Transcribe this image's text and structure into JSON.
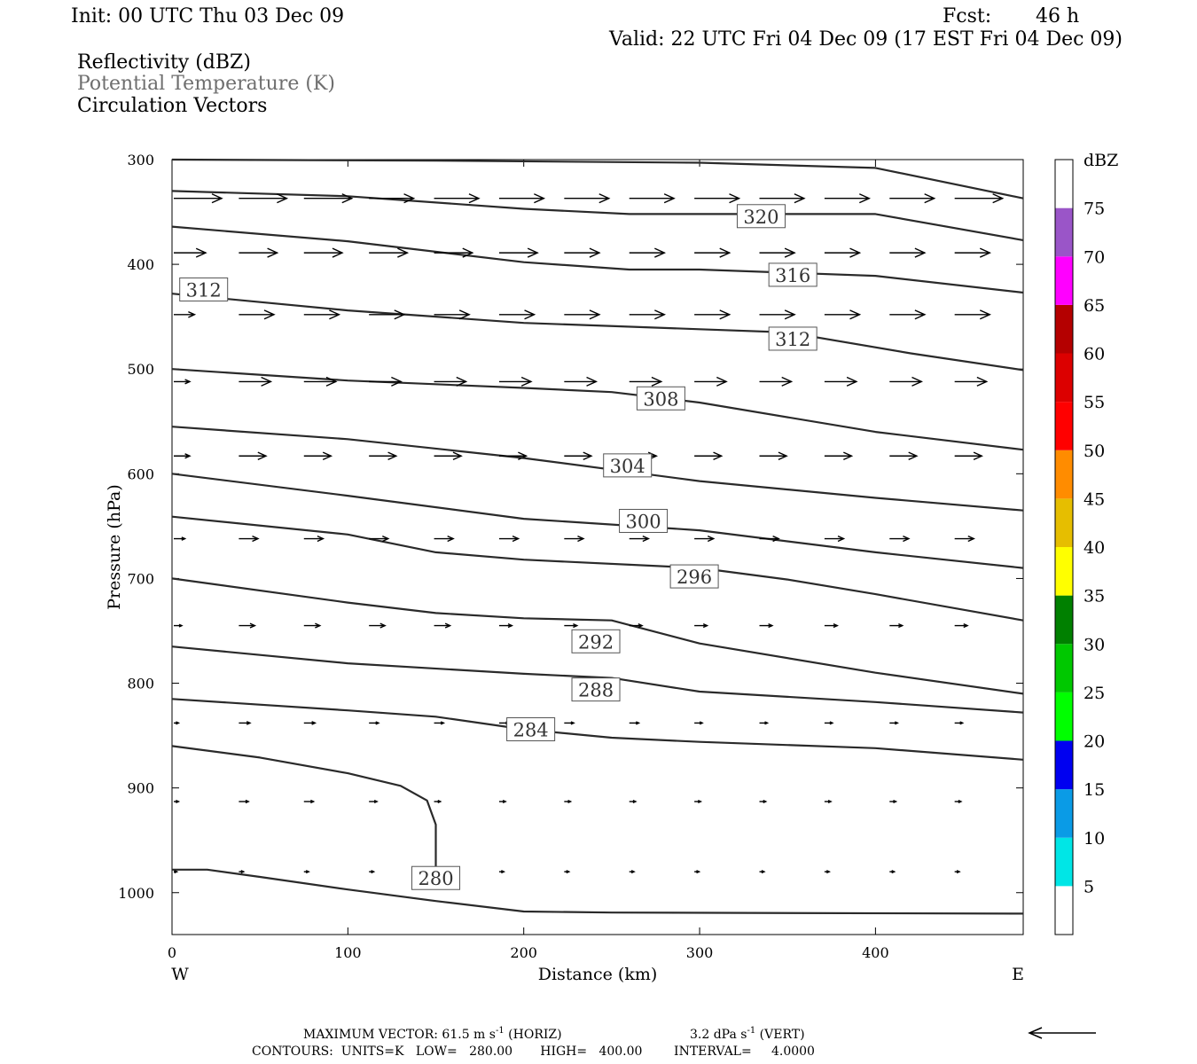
{
  "header": {
    "init": "Init: 00 UTC Thu 03 Dec 09",
    "fcst_label": "Fcst:",
    "fcst_hours": "46 h",
    "valid": "Valid: 22 UTC Fri 04 Dec 09 (17 EST Fri 04 Dec 09)",
    "fields": [
      "Reflectivity (dBZ)",
      "Potential Temperature (K)",
      "Circulation Vectors"
    ]
  },
  "footer": {
    "max_vector_prefix": "MAXIMUM VECTOR:  61.5 m s",
    "horiz_suffix": " (HORIZ)",
    "vert_prefix": "3.2 dPa s",
    "vert_suffix": " (VERT)",
    "sup": "-1",
    "contours": "CONTOURS:  UNITS=K   LOW=   280.00       HIGH=   400.00        INTERVAL=     4.0000"
  },
  "colorbar": {
    "title": "dBZ",
    "labels": [
      "5",
      "10",
      "15",
      "20",
      "25",
      "30",
      "35",
      "40",
      "45",
      "50",
      "55",
      "60",
      "65",
      "70",
      "75"
    ],
    "colors": [
      "#ffffff",
      "#00e6e6",
      "#0a9be6",
      "#0000f0",
      "#00ff00",
      "#00c800",
      "#008000",
      "#ffff00",
      "#e6be00",
      "#ff8c00",
      "#ff0000",
      "#dc0000",
      "#b40000",
      "#ff00ff",
      "#9a55c8",
      "#ffffff"
    ]
  },
  "chart_data": {
    "type": "line",
    "title": "Potential Temperature (K)",
    "xlabel": "Distance (km)",
    "ylabel": "Pressure (hPa)",
    "x_ticks": [
      "0",
      "100",
      "200",
      "300",
      "400"
    ],
    "y_ticks": [
      "300",
      "400",
      "500",
      "600",
      "700",
      "800",
      "900",
      "1000"
    ],
    "xlim": [
      0,
      484
    ],
    "ylim": [
      300,
      1040
    ],
    "x_end_labels": {
      "left": "W",
      "right": "E"
    },
    "contour_labels": [
      {
        "text": "280",
        "x": 150,
        "y": 986
      },
      {
        "text": "284",
        "x": 204,
        "y": 844
      },
      {
        "text": "288",
        "x": 241,
        "y": 806
      },
      {
        "text": "292",
        "x": 241,
        "y": 760
      },
      {
        "text": "296",
        "x": 297,
        "y": 698
      },
      {
        "text": "300",
        "x": 268,
        "y": 645
      },
      {
        "text": "304",
        "x": 259,
        "y": 592
      },
      {
        "text": "308",
        "x": 278,
        "y": 528
      },
      {
        "text": "312",
        "x": 18,
        "y": 424
      },
      {
        "text": "312",
        "x": 353,
        "y": 471
      },
      {
        "text": "316",
        "x": 353,
        "y": 410
      },
      {
        "text": "320",
        "x": 335,
        "y": 354
      }
    ],
    "series": [
      {
        "values": [
          [
            0,
            300
          ],
          [
            150,
            301
          ],
          [
            300,
            303
          ],
          [
            400,
            308
          ],
          [
            484,
            337
          ]
        ]
      },
      {
        "values": [
          [
            0,
            330
          ],
          [
            100,
            335
          ],
          [
            200,
            347
          ],
          [
            260,
            352
          ],
          [
            300,
            352
          ],
          [
            400,
            352
          ],
          [
            484,
            377
          ]
        ]
      },
      {
        "values": [
          [
            0,
            364
          ],
          [
            100,
            378
          ],
          [
            200,
            398
          ],
          [
            260,
            405
          ],
          [
            300,
            405
          ],
          [
            400,
            411
          ],
          [
            484,
            427
          ]
        ]
      },
      {
        "values": [
          [
            0,
            428
          ],
          [
            100,
            444
          ],
          [
            200,
            456
          ],
          [
            300,
            462
          ],
          [
            350,
            465
          ],
          [
            420,
            485
          ],
          [
            484,
            501
          ]
        ]
      },
      {
        "values": [
          [
            0,
            500
          ],
          [
            100,
            511
          ],
          [
            200,
            518
          ],
          [
            250,
            522
          ],
          [
            300,
            532
          ],
          [
            400,
            560
          ],
          [
            484,
            577
          ]
        ]
      },
      {
        "values": [
          [
            0,
            555
          ],
          [
            100,
            567
          ],
          [
            200,
            585
          ],
          [
            300,
            607
          ],
          [
            400,
            623
          ],
          [
            484,
            635
          ]
        ]
      },
      {
        "values": [
          [
            0,
            600
          ],
          [
            100,
            621
          ],
          [
            200,
            643
          ],
          [
            300,
            654
          ],
          [
            400,
            675
          ],
          [
            484,
            690
          ]
        ]
      },
      {
        "values": [
          [
            0,
            641
          ],
          [
            100,
            658
          ],
          [
            150,
            675
          ],
          [
            200,
            682
          ],
          [
            300,
            690
          ],
          [
            350,
            701
          ],
          [
            400,
            715
          ],
          [
            484,
            740
          ]
        ]
      },
      {
        "values": [
          [
            0,
            700
          ],
          [
            100,
            723
          ],
          [
            150,
            733
          ],
          [
            200,
            738
          ],
          [
            250,
            740
          ],
          [
            300,
            762
          ],
          [
            400,
            790
          ],
          [
            484,
            810
          ]
        ]
      },
      {
        "values": [
          [
            0,
            765
          ],
          [
            100,
            781
          ],
          [
            200,
            791
          ],
          [
            250,
            795
          ],
          [
            300,
            808
          ],
          [
            400,
            818
          ],
          [
            484,
            828
          ]
        ]
      },
      {
        "values": [
          [
            0,
            815
          ],
          [
            100,
            826
          ],
          [
            150,
            832
          ],
          [
            200,
            844
          ],
          [
            250,
            852
          ],
          [
            300,
            856
          ],
          [
            400,
            862
          ],
          [
            484,
            873
          ]
        ]
      },
      {
        "values": [
          [
            0,
            860
          ],
          [
            50,
            871
          ],
          [
            100,
            886
          ],
          [
            130,
            898
          ],
          [
            145,
            912
          ],
          [
            150,
            935
          ],
          [
            150,
            986
          ],
          [
            152,
            990
          ]
        ]
      },
      {
        "values": [
          [
            0,
            978
          ],
          [
            20,
            978
          ],
          [
            50,
            985
          ],
          [
            100,
            997
          ],
          [
            150,
            1008
          ],
          [
            200,
            1018
          ],
          [
            250,
            1019
          ],
          [
            484,
            1020
          ]
        ]
      }
    ],
    "vectors": {
      "x": [
        0,
        37,
        74,
        111,
        148,
        185,
        222,
        259,
        296,
        333,
        370,
        407,
        444
      ],
      "levels": [
        {
          "p": 337,
          "u": [
            30,
            30,
            30,
            28,
            28,
            28,
            28,
            28,
            28,
            28,
            28,
            28,
            30
          ]
        },
        {
          "p": 389,
          "u": [
            20,
            24,
            24,
            24,
            24,
            24,
            22,
            22,
            22,
            22,
            22,
            22,
            22
          ]
        },
        {
          "p": 448,
          "u": [
            13,
            22,
            22,
            22,
            22,
            22,
            22,
            22,
            22,
            22,
            22,
            22,
            22
          ]
        },
        {
          "p": 512,
          "u": [
            10,
            20,
            20,
            20,
            20,
            20,
            20,
            20,
            20,
            20,
            20,
            20,
            20
          ]
        },
        {
          "p": 583,
          "u": [
            10,
            17,
            17,
            17,
            17,
            17,
            17,
            17,
            17,
            17,
            17,
            17,
            17
          ]
        },
        {
          "p": 662,
          "u": [
            7,
            12,
            12,
            12,
            12,
            12,
            12,
            12,
            12,
            12,
            12,
            12,
            12
          ]
        },
        {
          "p": 745,
          "u": [
            5,
            10,
            10,
            10,
            10,
            8,
            8,
            8,
            8,
            8,
            8,
            8,
            8
          ]
        },
        {
          "p": 838,
          "u": [
            3,
            7,
            7,
            6,
            6,
            6,
            6,
            6,
            5,
            5,
            5,
            5,
            5
          ]
        },
        {
          "p": 913,
          "u": [
            3,
            6,
            6,
            5,
            4,
            4,
            4,
            4,
            4,
            4,
            4,
            4,
            4
          ]
        },
        {
          "p": 980,
          "u": [
            2,
            3,
            3,
            3,
            3,
            3,
            3,
            3,
            3,
            3,
            3,
            3,
            3
          ]
        }
      ]
    }
  }
}
